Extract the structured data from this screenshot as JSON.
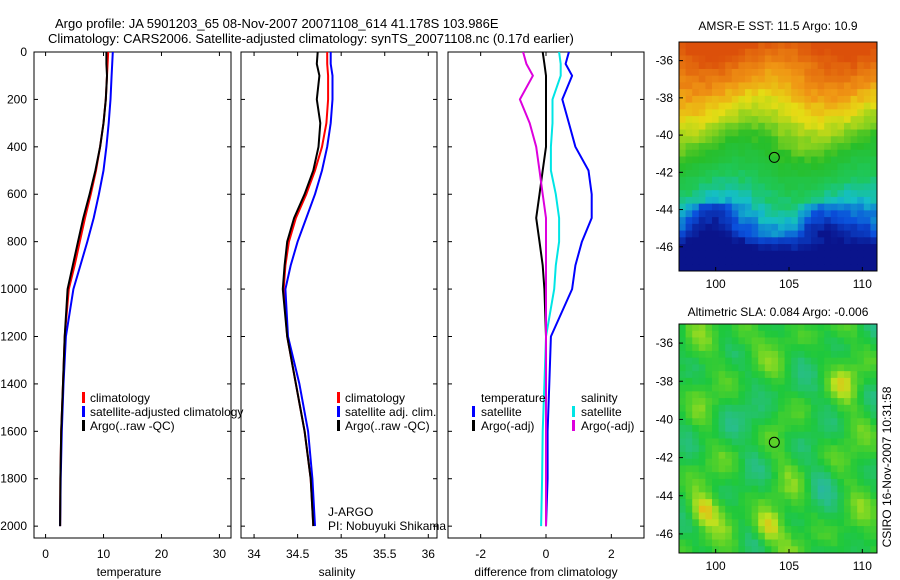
{
  "header": {
    "line1": "Argo profile: JA 5901203_65 08-Nov-2007 20071108_614 41.178S 103.986E",
    "line2": "Climatology: CARS2006. Satellite-adjusted climatology: synTS_20071108.nc (0.17d earlier)"
  },
  "side_label": "CSIRO 16-Nov-2007 10:31:58",
  "chart_data": [
    {
      "type": "line",
      "xlabel": "temperature",
      "xlim": [
        -2,
        32
      ],
      "xticks": [
        0,
        10,
        20,
        30
      ],
      "ylim": [
        2050,
        0
      ],
      "yticks": [
        0,
        200,
        400,
        600,
        800,
        1000,
        1200,
        1400,
        1600,
        1800,
        2000
      ],
      "legend": [
        "climatology",
        "satellite-adjusted climatology",
        "Argo(..raw -QC)"
      ],
      "legend_placement": "lower-right",
      "series": [
        {
          "name": "climatology",
          "color": "#ff0000",
          "x": [
            10.8,
            10.7,
            10.6,
            10.4,
            10.0,
            9.4,
            8.7,
            7.8,
            6.8,
            5.9,
            5.0,
            4.0,
            3.3,
            3.0,
            2.7,
            2.55,
            2.5
          ],
          "y": [
            0,
            50,
            100,
            200,
            300,
            400,
            500,
            600,
            700,
            800,
            900,
            1000,
            1200,
            1400,
            1600,
            1800,
            2000
          ]
        },
        {
          "name": "satellite-adjusted climatology",
          "color": "#0000ff",
          "x": [
            11.6,
            11.5,
            11.4,
            11.2,
            10.9,
            10.5,
            10.0,
            9.2,
            8.3,
            7.2,
            6.0,
            4.8,
            3.5,
            3.1,
            2.8,
            2.6,
            2.5
          ],
          "y": [
            0,
            50,
            100,
            200,
            300,
            400,
            500,
            600,
            700,
            800,
            900,
            1000,
            1200,
            1400,
            1600,
            1800,
            2000
          ]
        },
        {
          "name": "Argo(..raw -QC)",
          "color": "#000000",
          "x": [
            10.5,
            10.5,
            10.6,
            10.4,
            10.0,
            9.4,
            8.6,
            7.6,
            6.5,
            5.6,
            4.7,
            3.8,
            3.3,
            3.0,
            2.7,
            2.55,
            2.5
          ],
          "y": [
            0,
            50,
            100,
            200,
            300,
            400,
            500,
            600,
            700,
            800,
            900,
            1000,
            1200,
            1400,
            1600,
            1800,
            2000
          ]
        }
      ]
    },
    {
      "type": "line",
      "xlabel": "salinity",
      "xlim": [
        33.85,
        36.1
      ],
      "xticks": [
        34,
        34.5,
        35,
        35.5,
        36
      ],
      "ylim": [
        2050,
        0
      ],
      "legend": [
        "climatology",
        "satellite adj. clim.",
        "Argo(..raw -QC)"
      ],
      "legend_placement": "lower-right",
      "annotation": [
        "J-ARGO",
        "PI: Nobuyuki Shikama"
      ],
      "series": [
        {
          "name": "climatology",
          "color": "#ff0000",
          "x": [
            34.84,
            34.84,
            34.85,
            34.85,
            34.83,
            34.78,
            34.7,
            34.6,
            34.48,
            34.4,
            34.36,
            34.34,
            34.38,
            34.48,
            34.58,
            34.65,
            34.68
          ],
          "y": [
            0,
            50,
            100,
            200,
            300,
            400,
            500,
            600,
            700,
            800,
            900,
            1000,
            1200,
            1400,
            1600,
            1800,
            2000
          ]
        },
        {
          "name": "satellite adj. clim.",
          "color": "#0000ff",
          "x": [
            34.88,
            34.88,
            34.9,
            34.9,
            34.88,
            34.84,
            34.78,
            34.7,
            34.6,
            34.5,
            34.42,
            34.36,
            34.39,
            34.52,
            34.62,
            34.67,
            34.7
          ],
          "y": [
            0,
            50,
            100,
            200,
            300,
            400,
            500,
            600,
            700,
            800,
            900,
            1000,
            1200,
            1400,
            1600,
            1800,
            2000
          ]
        },
        {
          "name": "Argo(..raw -QC)",
          "color": "#000000",
          "x": [
            34.73,
            34.72,
            34.75,
            34.72,
            34.76,
            34.74,
            34.68,
            34.58,
            34.46,
            34.38,
            34.35,
            34.33,
            34.38,
            34.48,
            34.58,
            34.65,
            34.68
          ],
          "y": [
            0,
            50,
            100,
            200,
            300,
            400,
            500,
            600,
            700,
            800,
            900,
            1000,
            1200,
            1400,
            1600,
            1800,
            2000
          ]
        }
      ]
    },
    {
      "type": "line",
      "xlabel": "difference from climatology",
      "xlim": [
        -3,
        3
      ],
      "xticks": [
        -2,
        0,
        2
      ],
      "ylim": [
        2050,
        0
      ],
      "legend_groups": [
        {
          "title": "temperature",
          "items": [
            "satellite",
            "Argo(-adj)"
          ]
        },
        {
          "title": "salinity",
          "items": [
            "satellite",
            "Argo(-adj)"
          ]
        }
      ],
      "legend_placement": "lower-right",
      "series": [
        {
          "name": "satellite",
          "color": "#0000ff",
          "x": [
            0.7,
            0.6,
            0.8,
            0.5,
            0.7,
            0.9,
            1.3,
            1.4,
            1.4,
            1.1,
            0.9,
            0.8,
            0.15,
            0.1,
            0.05,
            0.05,
            0.0
          ],
          "y": [
            0,
            50,
            100,
            200,
            300,
            400,
            500,
            600,
            700,
            800,
            900,
            1000,
            1200,
            1400,
            1600,
            1800,
            2000
          ]
        },
        {
          "name": "Argo(-adj)",
          "color": "#000000",
          "x": [
            -0.1,
            -0.05,
            0.0,
            0.0,
            0.0,
            0.0,
            -0.1,
            -0.2,
            -0.3,
            -0.2,
            -0.1,
            -0.05,
            0.0,
            0.0,
            0.0,
            0.0,
            0.0
          ],
          "y": [
            0,
            50,
            100,
            200,
            300,
            400,
            500,
            600,
            700,
            800,
            900,
            1000,
            1200,
            1400,
            1600,
            1800,
            2000
          ]
        },
        {
          "name": "satellite",
          "color": "#00e5e5",
          "x": [
            0.4,
            0.45,
            0.45,
            0.2,
            0.2,
            0.15,
            0.15,
            0.3,
            0.4,
            0.4,
            0.3,
            0.25,
            0.0,
            -0.05,
            -0.1,
            -0.12,
            -0.15
          ],
          "y": [
            0,
            50,
            100,
            200,
            300,
            400,
            500,
            600,
            700,
            800,
            900,
            1000,
            1200,
            1400,
            1600,
            1800,
            2000
          ]
        },
        {
          "name": "Argo(-adj)",
          "color": "#dd00dd",
          "x": [
            -0.7,
            -0.6,
            -0.4,
            -0.8,
            -0.5,
            -0.3,
            -0.2,
            -0.1,
            0.0,
            0.0,
            0.0,
            0.0,
            0.0,
            0.0,
            0.0,
            0.0,
            0.0
          ],
          "y": [
            0,
            50,
            100,
            200,
            300,
            400,
            500,
            600,
            700,
            800,
            900,
            1000,
            1200,
            1400,
            1600,
            1800,
            2000
          ]
        }
      ]
    },
    {
      "type": "heatmap",
      "title": "AMSR-E SST: 11.5 Argo: 10.9",
      "xlim": [
        97.5,
        111
      ],
      "xticks": [
        100,
        105,
        110
      ],
      "ylim": [
        -47.3,
        -35
      ],
      "yticks": [
        -36,
        -38,
        -40,
        -42,
        -44,
        -46
      ],
      "marker": {
        "x": 104.0,
        "y": -41.2
      }
    },
    {
      "type": "heatmap",
      "title": "Altimetric SLA: 0.084 Argo: -0.006",
      "xlim": [
        97.5,
        111
      ],
      "xticks": [
        100,
        105,
        110
      ],
      "ylim": [
        -47,
        -35
      ],
      "yticks": [
        -36,
        -38,
        -40,
        -42,
        -44,
        -46
      ],
      "marker": {
        "x": 104.0,
        "y": -41.2
      }
    }
  ]
}
